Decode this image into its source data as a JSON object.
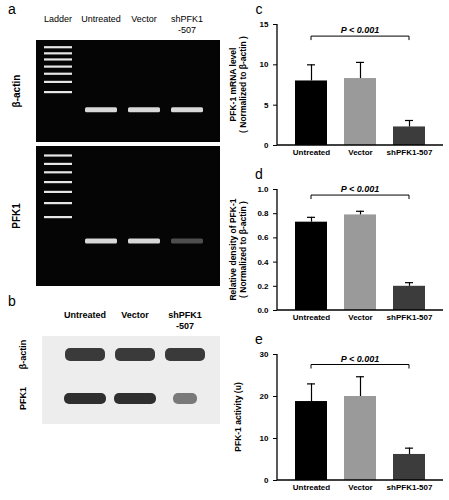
{
  "gels": [
    {
      "panel": "a",
      "lanes": [
        "Ladder",
        "Untreated",
        "Vector",
        "shPFK1\n-507"
      ],
      "rows": [
        "β-actin",
        "PFK1"
      ]
    },
    {
      "panel": "b",
      "lanes": [
        "Untreated",
        "Vector",
        "shPFK1\n-507"
      ],
      "rows": [
        "β-actin",
        "PFK1"
      ]
    }
  ],
  "chart_data": [
    {
      "type": "bar",
      "title": "c",
      "ylabel": "PFK-1 mRNA level\n( Normalized to β-actin )",
      "categories": [
        "Untreated",
        "Vector",
        "shPFK1-507"
      ],
      "values": [
        8.0,
        8.3,
        2.3
      ],
      "errors": [
        2.0,
        2.0,
        0.8
      ],
      "colors": [
        "#000000",
        "#9a9a9a",
        "#3c3c3c"
      ],
      "ylim": [
        0,
        15
      ],
      "yticks": [
        0,
        5,
        10,
        15
      ],
      "annotations": [
        {
          "text": "P < 0.001",
          "from": "Untreated",
          "to": "shPFK1-507",
          "y": 13.5
        }
      ]
    },
    {
      "type": "bar",
      "title": "d",
      "ylabel": "Relative density of PFK-1\n( Normalized to β-actin )",
      "categories": [
        "Untreated",
        "Vector",
        "shPFK1-507"
      ],
      "values": [
        0.73,
        0.79,
        0.2
      ],
      "errors": [
        0.04,
        0.03,
        0.03
      ],
      "colors": [
        "#000000",
        "#9a9a9a",
        "#3c3c3c"
      ],
      "ylim": [
        0,
        1
      ],
      "yticks": [
        {
          "value": 0,
          "label": "0.0"
        },
        0.2,
        0.4,
        0.6,
        0.8,
        {
          "value": 1,
          "label": "1.0"
        }
      ],
      "annotations": [
        {
          "text": "P < 0.001",
          "from": "Untreated",
          "to": "shPFK1-507",
          "y": 0.95
        }
      ]
    },
    {
      "type": "bar",
      "title": "e",
      "ylabel": "PFK-1 activity (u)",
      "categories": [
        "Untreated",
        "Vector",
        "shPFK1-507"
      ],
      "values": [
        18.8,
        20.0,
        6.2
      ],
      "errors": [
        4.2,
        4.7,
        1.5
      ],
      "colors": [
        "#000000",
        "#9a9a9a",
        "#3c3c3c"
      ],
      "ylim": [
        0,
        30
      ],
      "yticks": [
        0,
        10,
        20,
        30
      ],
      "annotations": [
        {
          "text": "P < 0.001",
          "from": "Untreated",
          "to": "shPFK1-507",
          "y": 27.5
        }
      ]
    }
  ]
}
